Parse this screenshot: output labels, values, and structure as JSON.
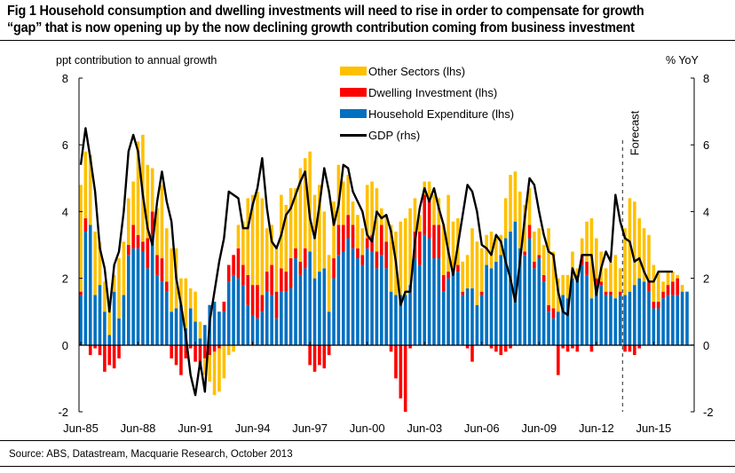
{
  "figure": {
    "title_line1": "Fig 1   Household consumption and dwelling investments will need to rise in order to compensate for growth",
    "title_line2": "“gap” that is now opening up by the now declining growth contribution coming from business investment",
    "source": "Source: ABS, Datastream, Macquarie Research, October 2013"
  },
  "chart_data": {
    "type": "bar",
    "stacked": true,
    "title": "Household consumption and dwelling investments will need to rise in order to compensate for growth “gap” that is now opening up by the now declining growth contribution coming from business investment",
    "ylabel_left": "ppt contribution  to annual growth",
    "ylabel_right": "% YoY",
    "ylim_left": [
      -2,
      8
    ],
    "ylim_right": [
      -2,
      8
    ],
    "yticks_left": [
      "8",
      "6",
      "4",
      "2",
      "0",
      "-2"
    ],
    "yticks_right": [
      "8",
      "6",
      "4",
      "2",
      "0",
      "-2"
    ],
    "xtick_labels": [
      "Jun-85",
      "Jun-88",
      "Jun-91",
      "Jun-94",
      "Jun-97",
      "Jun-00",
      "Jun-03",
      "Jun-06",
      "Jun-09",
      "Jun-12",
      "Jun-15"
    ],
    "x_start": "Jun-85",
    "x_end": "Jun-15",
    "frequency": "quarterly",
    "forecast_label": "Forecast",
    "forecast_start_index": 114,
    "grid": false,
    "legend_position": "top-center",
    "colors": {
      "other": "#FFC000",
      "dwelling": "#FF0000",
      "household": "#0070C0",
      "gdp": "#000000"
    },
    "series": [
      {
        "name": "Household Expenditure (lhs)",
        "key": "household",
        "values": [
          1.5,
          3.4,
          3.6,
          1.5,
          1.8,
          1.0,
          0.3,
          1.6,
          0.8,
          1.5,
          2.7,
          2.9,
          2.9,
          2.8,
          2.3,
          3.3,
          2.1,
          1.9,
          1.6,
          1.0,
          1.1,
          1.2,
          0.5,
          1.1,
          0.7,
          0.2,
          0.6,
          1.2,
          1.3,
          1.0,
          1.0,
          1.9,
          2.1,
          2.0,
          1.8,
          1.2,
          0.9,
          0.8,
          1.0,
          1.6,
          1.5,
          0.8,
          1.6,
          1.6,
          1.7,
          2.6,
          2.1,
          2.3,
          2.8,
          2.0,
          2.2,
          2.3,
          1.0,
          2.0,
          2.7,
          2.8,
          3.2,
          2.9,
          2.6,
          2.4,
          2.9,
          2.8,
          2.3,
          2.7,
          2.3,
          1.6,
          1.5,
          1.5,
          1.5,
          1.8,
          2.6,
          2.4,
          3.3,
          3.2,
          2.6,
          2.6,
          1.6,
          2.0,
          2.3,
          2.2,
          1.5,
          1.7,
          1.7,
          1.2,
          1.5,
          2.4,
          2.3,
          2.5,
          2.7,
          3.2,
          3.4,
          3.7,
          2.9,
          2.7,
          3.2,
          2.3,
          2.6,
          1.9,
          1.0,
          0.8,
          1.0,
          1.5,
          1.4,
          2.0,
          2.1,
          2.4,
          2.1,
          1.4,
          1.8,
          1.8,
          1.5,
          1.5,
          1.4,
          1.5,
          1.5,
          1.6,
          1.8,
          2.0,
          1.9,
          1.6,
          1.1,
          1.1,
          1.4,
          1.5,
          1.5,
          1.5,
          1.6,
          1.6
        ]
      },
      {
        "name": "Dwelling Investment (lhs)",
        "key": "dwelling",
        "values": [
          0.1,
          0.4,
          -0.3,
          -0.1,
          -0.3,
          -0.8,
          -0.6,
          -0.7,
          -0.4,
          0.0,
          0.3,
          0.7,
          0.4,
          0.3,
          0.9,
          0.7,
          0.6,
          0.7,
          0.3,
          -0.4,
          -0.6,
          -0.9,
          -0.4,
          -0.1,
          -0.5,
          -0.6,
          -0.4,
          -0.3,
          -0.2,
          -0.1,
          0.3,
          0.5,
          0.6,
          0.9,
          0.6,
          0.9,
          0.9,
          1.0,
          0.5,
          0.6,
          0.9,
          0.8,
          0.7,
          0.6,
          0.9,
          0.3,
          0.4,
          0.6,
          -0.6,
          -0.8,
          -0.6,
          -0.7,
          -0.3,
          0.6,
          0.9,
          0.8,
          0.7,
          0.7,
          0.3,
          0.3,
          0.3,
          0.5,
          0.5,
          0.9,
          0.8,
          -0.2,
          -1.0,
          -1.6,
          -2.0,
          -0.1,
          0.8,
          1.0,
          1.2,
          1.2,
          1.0,
          1.0,
          0.5,
          0.2,
          0.0,
          0.2,
          0.1,
          -0.1,
          -0.5,
          0.0,
          0.1,
          0.0,
          -0.1,
          -0.2,
          -0.3,
          -0.2,
          -0.1,
          0.0,
          0.0,
          0.1,
          0.4,
          0.2,
          0.1,
          0.2,
          0.2,
          0.3,
          -0.9,
          -0.1,
          -0.2,
          -0.1,
          -0.2,
          0.3,
          0.4,
          -0.2,
          0.2,
          0.1,
          0.1,
          0.1,
          0.0,
          0.1,
          -0.2,
          -0.2,
          -0.3,
          -0.1,
          0.0,
          0.3,
          0.2,
          0.2,
          0.2,
          0.3,
          0.4,
          0.5
        ]
      },
      {
        "name": "Other Sectors (lhs)",
        "key": "other",
        "values": [
          3.2,
          2.0,
          2.1,
          1.9,
          1.3,
          0.9,
          1.0,
          0.5,
          1.8,
          1.6,
          1.4,
          1.3,
          2.8,
          3.2,
          2.2,
          1.3,
          1.4,
          2.2,
          1.6,
          1.9,
          1.8,
          0.8,
          1.5,
          0.6,
          0.9,
          0.5,
          -0.5,
          -0.8,
          -1.3,
          -1.3,
          -1.0,
          -0.3,
          -0.2,
          0.7,
          1.3,
          2.3,
          2.7,
          2.8,
          2.9,
          1.3,
          1.2,
          1.4,
          2.2,
          2.0,
          2.1,
          1.8,
          2.8,
          2.7,
          3.0,
          2.5,
          2.6,
          1.7,
          1.7,
          1.7,
          1.8,
          1.3,
          1.2,
          0.7,
          1.0,
          0.8,
          1.6,
          1.6,
          1.9,
          0.5,
          0.8,
          2.0,
          1.9,
          2.2,
          2.3,
          2.3,
          1.0,
          0.5,
          0.4,
          0.5,
          0.9,
          0.8,
          1.5,
          2.3,
          1.4,
          1.4,
          0.9,
          1.0,
          1.8,
          1.9,
          1.3,
          0.9,
          1.1,
          0.8,
          0.6,
          1.2,
          1.7,
          1.5,
          1.7,
          1.4,
          1.1,
          0.9,
          0.8,
          0.9,
          2.3,
          1.7,
          1.0,
          0.6,
          0.7,
          0.8,
          0.2,
          0.5,
          1.2,
          2.4,
          1.2,
          0.9,
          0.7,
          0.9,
          1.3,
          0.7,
          2.0,
          2.8,
          2.5,
          1.8,
          1.6,
          1.4,
          1.1,
          0.9,
          0.3,
          0.4,
          0.3,
          0.1,
          0.2
        ]
      },
      {
        "name": "GDP (rhs)",
        "key": "gdp",
        "type": "line",
        "values": [
          5.4,
          6.5,
          5.6,
          4.6,
          2.9,
          2.3,
          1.0,
          2.4,
          2.8,
          4.0,
          5.8,
          6.3,
          5.8,
          4.5,
          3.5,
          3.0,
          4.3,
          5.2,
          4.3,
          3.7,
          2.0,
          1.2,
          0.3,
          -0.9,
          -1.5,
          -0.5,
          -1.4,
          0.7,
          1.6,
          2.5,
          3.2,
          4.6,
          4.5,
          4.4,
          3.5,
          3.5,
          4.2,
          4.7,
          5.6,
          4.1,
          3.1,
          2.9,
          3.3,
          3.9,
          4.1,
          4.5,
          4.9,
          5.2,
          3.8,
          3.2,
          4.2,
          5.3,
          4.6,
          3.6,
          4.2,
          5.4,
          5.3,
          4.6,
          4.3,
          4.0,
          3.3,
          3.1,
          4.0,
          3.8,
          3.9,
          3.4,
          2.5,
          1.2,
          1.6,
          1.6,
          3.1,
          4.1,
          4.7,
          4.3,
          4.7,
          4.1,
          3.6,
          2.8,
          2.1,
          3.0,
          3.9,
          4.8,
          4.6,
          4.0,
          3.0,
          2.9,
          2.7,
          3.3,
          3.1,
          2.5,
          2.0,
          1.3,
          2.5,
          3.8,
          5.0,
          4.8,
          4.0,
          3.3,
          2.8,
          2.7,
          1.6,
          1.0,
          0.9,
          2.3,
          1.9,
          2.7,
          2.7,
          2.7,
          1.5,
          2.3,
          2.8,
          2.5,
          4.5,
          3.7,
          3.2,
          3.1,
          2.5,
          2.6,
          2.2,
          1.9,
          1.9,
          2.2,
          2.2,
          2.2,
          2.2
        ]
      }
    ]
  },
  "legend": {
    "other": "Other Sectors (lhs)",
    "dwelling": "Dwelling Investment (lhs)",
    "household": "Household Expenditure (lhs)",
    "gdp": "GDP (rhs)"
  }
}
